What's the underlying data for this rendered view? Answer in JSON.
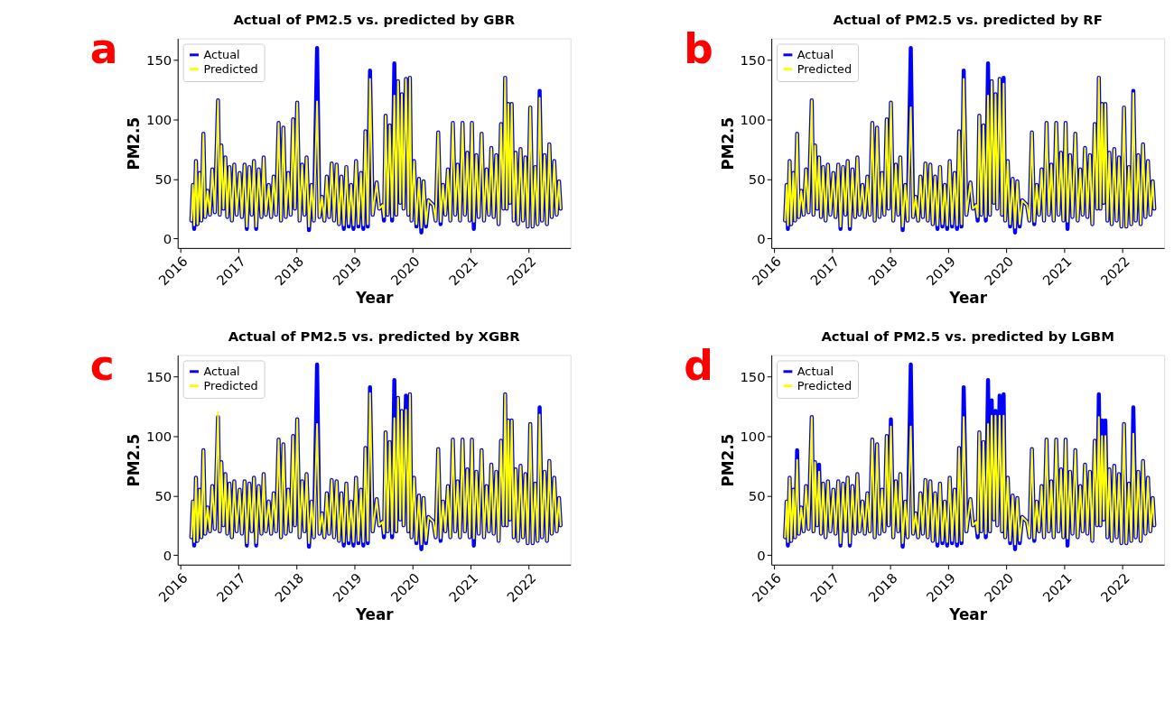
{
  "chart_data": [
    {
      "type": "line",
      "title": "Actual of PM2.5 vs. predicted by GBR",
      "xlabel": "Year",
      "ylabel": "PM2.5",
      "annotations": [
        "a"
      ],
      "legend": "top left",
      "grid": false,
      "xlim": [
        "2015-12-15",
        "2022-09-20"
      ],
      "xticks": [
        "2016",
        "2017",
        "2018",
        "2019",
        "2020",
        "2021",
        "2022"
      ],
      "ylim": [
        -8,
        168
      ],
      "yticks": [
        0,
        50,
        100,
        150
      ],
      "x": [
        "2016-03-10",
        "2016-03-20",
        "2016-03-28",
        "2016-04-08",
        "2016-04-18",
        "2016-05-01",
        "2016-05-12",
        "2016-05-25",
        "2016-06-05",
        "2016-06-20",
        "2016-07-05",
        "2016-07-20",
        "2016-08-05",
        "2016-08-25",
        "2016-09-05",
        "2016-09-15",
        "2016-09-28",
        "2016-10-10",
        "2016-10-22",
        "2016-11-05",
        "2016-11-20",
        "2016-12-05",
        "2016-12-20",
        "2017-01-08",
        "2017-01-22",
        "2017-02-08",
        "2017-02-22",
        "2017-03-10",
        "2017-03-25",
        "2017-04-08",
        "2017-04-22",
        "2017-05-08",
        "2017-05-25",
        "2017-06-08",
        "2017-06-22",
        "2017-07-10",
        "2017-07-25",
        "2017-08-10",
        "2017-08-25",
        "2017-09-10",
        "2017-09-25",
        "2017-10-10",
        "2017-10-25",
        "2017-11-10",
        "2017-11-25",
        "2017-12-10",
        "2017-12-22",
        "2018-01-05",
        "2018-01-20",
        "2018-02-05",
        "2018-02-20",
        "2018-03-05",
        "2018-03-20",
        "2018-04-05",
        "2018-04-20",
        "2018-05-10",
        "2018-05-25",
        "2018-06-10",
        "2018-06-25",
        "2018-07-10",
        "2018-07-25",
        "2018-08-10",
        "2018-08-25",
        "2018-09-10",
        "2018-09-25",
        "2018-10-10",
        "2018-10-25",
        "2018-11-10",
        "2018-11-25",
        "2018-12-10",
        "2018-12-25",
        "2019-01-10",
        "2019-01-25",
        "2019-02-10",
        "2019-02-25",
        "2019-03-10",
        "2019-03-25",
        "2019-04-08",
        "2019-04-25",
        "2019-05-20",
        "2019-06-05",
        "2019-06-25",
        "2019-07-05",
        "2019-07-15",
        "2019-07-28",
        "2019-08-10",
        "2019-08-25",
        "2019-09-08",
        "2019-09-20",
        "2019-10-01",
        "2019-10-15",
        "2019-10-25",
        "2019-11-05",
        "2019-11-20",
        "2019-12-05",
        "2019-12-15",
        "2019-12-25",
        "2020-01-10",
        "2020-01-25",
        "2020-02-10",
        "2020-02-25",
        "2020-03-10",
        "2020-03-25",
        "2020-04-10",
        "2020-05-10",
        "2020-05-25",
        "2020-06-10",
        "2020-06-25",
        "2020-07-10",
        "2020-07-25",
        "2020-08-10",
        "2020-08-25",
        "2020-09-10",
        "2020-09-25",
        "2020-10-10",
        "2020-10-25",
        "2020-11-10",
        "2020-11-25",
        "2020-12-10",
        "2020-12-25",
        "2021-01-08",
        "2021-01-20",
        "2021-02-05",
        "2021-02-20",
        "2021-03-10",
        "2021-03-25",
        "2021-04-10",
        "2021-04-25",
        "2021-05-10",
        "2021-05-25",
        "2021-06-10",
        "2021-06-25",
        "2021-07-10",
        "2021-07-25",
        "2021-08-05",
        "2021-08-15",
        "2021-08-25",
        "2021-09-05",
        "2021-09-15",
        "2021-09-28",
        "2021-10-10",
        "2021-10-25",
        "2021-11-10",
        "2021-11-25",
        "2021-12-10",
        "2021-12-25",
        "2022-01-10",
        "2022-01-25",
        "2022-02-10",
        "2022-02-25",
        "2022-03-10",
        "2022-03-25",
        "2022-04-10",
        "2022-04-25",
        "2022-05-10",
        "2022-05-25",
        "2022-06-10",
        "2022-06-25",
        "2022-07-10",
        "2022-07-20"
      ],
      "series": [
        {
          "name": "Actual",
          "color": "#0000ff",
          "values": [
            15,
            45,
            8,
            65,
            12,
            55,
            15,
            88,
            18,
            40,
            20,
            58,
            22,
            116,
            20,
            78,
            25,
            68,
            18,
            60,
            15,
            62,
            20,
            55,
            18,
            62,
            8,
            60,
            20,
            65,
            8,
            58,
            18,
            68,
            20,
            45,
            18,
            52,
            20,
            97,
            15,
            93,
            18,
            55,
            20,
            100,
            25,
            114,
            15,
            62,
            20,
            68,
            7,
            45,
            15,
            160,
            18,
            35,
            15,
            52,
            18,
            63,
            15,
            62,
            12,
            52,
            8,
            60,
            10,
            45,
            8,
            65,
            10,
            55,
            8,
            90,
            10,
            141,
            20,
            47,
            25,
            28,
            15,
            103,
            20,
            95,
            15,
            147,
            20,
            132,
            30,
            121,
            25,
            134,
            20,
            135,
            15,
            65,
            10,
            50,
            5,
            48,
            10,
            32,
            28,
            15,
            89,
            12,
            45,
            20,
            58,
            15,
            97,
            20,
            62,
            15,
            97,
            20,
            72,
            15,
            97,
            8,
            70,
            18,
            88,
            15,
            58,
            20,
            76,
            18,
            70,
            12,
            96,
            25,
            135,
            25,
            113,
            30,
            113,
            15,
            72,
            12,
            75,
            15,
            68,
            10,
            110,
            10,
            60,
            12,
            124,
            15,
            70,
            12,
            79,
            18,
            65,
            20,
            48,
            25
          ]
        },
        {
          "name": "Predicted",
          "color": "#ffff00",
          "values": [
            15,
            45,
            11,
            65,
            12,
            55,
            15,
            88,
            18,
            40,
            20,
            58,
            22,
            116,
            20,
            78,
            25,
            68,
            18,
            60,
            15,
            62,
            20,
            55,
            18,
            62,
            10,
            60,
            20,
            65,
            10,
            58,
            18,
            68,
            20,
            45,
            18,
            52,
            20,
            97,
            15,
            93,
            18,
            55,
            20,
            100,
            25,
            114,
            15,
            62,
            20,
            68,
            10,
            45,
            15,
            115,
            18,
            35,
            15,
            52,
            18,
            63,
            15,
            62,
            12,
            52,
            11,
            60,
            12,
            45,
            11,
            65,
            12,
            55,
            11,
            90,
            12,
            134,
            20,
            47,
            25,
            28,
            18,
            103,
            20,
            95,
            18,
            120,
            20,
            132,
            30,
            121,
            25,
            134,
            20,
            135,
            15,
            65,
            12,
            50,
            9,
            48,
            12,
            32,
            28,
            15,
            89,
            14,
            45,
            20,
            58,
            15,
            97,
            20,
            62,
            15,
            97,
            20,
            72,
            15,
            97,
            14,
            70,
            18,
            88,
            15,
            58,
            20,
            76,
            18,
            70,
            12,
            96,
            25,
            135,
            25,
            113,
            30,
            113,
            15,
            72,
            12,
            75,
            15,
            68,
            10,
            110,
            10,
            60,
            12,
            118,
            15,
            70,
            12,
            79,
            18,
            65,
            20,
            48,
            25
          ]
        }
      ]
    },
    {
      "type": "line",
      "title": "Actual of PM2.5 vs. predicted by RF",
      "xlabel": "Year",
      "ylabel": "PM2.5",
      "annotations": [
        "b"
      ],
      "legend": "top left",
      "grid": false,
      "xlim": [
        "2015-12-15",
        "2022-09-20"
      ],
      "xticks": [
        "2016",
        "2017",
        "2018",
        "2019",
        "2020",
        "2021",
        "2022"
      ],
      "ylim": [
        -8,
        168
      ],
      "yticks": [
        0,
        50,
        100,
        150
      ],
      "x": [
        "2016-03-10",
        "2016-03-20",
        "2016-03-28",
        "2016-04-08",
        "2016-04-18",
        "2016-05-01",
        "2016-05-12",
        "2016-05-25",
        "2016-06-05",
        "2016-06-20",
        "2016-07-05",
        "2016-07-20",
        "2016-08-05",
        "2016-08-25",
        "2016-09-05",
        "2016-09-15",
        "2016-09-28",
        "2016-10-10",
        "2016-10-22",
        "2016-11-05",
        "2016-11-20",
        "2016-12-05",
        "2016-12-20",
        "2017-01-08",
        "2017-01-22",
        "2017-02-08",
        "2017-02-22",
        "2017-03-10",
        "2017-03-25",
        "2017-04-08",
        "2017-04-22",
        "2017-05-08",
        "2017-05-25",
        "2017-06-08",
        "2017-06-22",
        "2017-07-10",
        "2017-07-25",
        "2017-08-10",
        "2017-08-25",
        "2017-09-10",
        "2017-09-25",
        "2017-10-10",
        "2017-10-25",
        "2017-11-10",
        "2017-11-25",
        "2017-12-10",
        "2017-12-22",
        "2018-01-05",
        "2018-01-20",
        "2018-02-05",
        "2018-02-20",
        "2018-03-05",
        "2018-03-20",
        "2018-04-05",
        "2018-04-20",
        "2018-05-10",
        "2018-05-25",
        "2018-06-10",
        "2018-06-25",
        "2018-07-10",
        "2018-07-25",
        "2018-08-10",
        "2018-08-25",
        "2018-09-10",
        "2018-09-25",
        "2018-10-10",
        "2018-10-25",
        "2018-11-10",
        "2018-11-25",
        "2018-12-10",
        "2018-12-25",
        "2019-01-10",
        "2019-01-25",
        "2019-02-10",
        "2019-02-25",
        "2019-03-10",
        "2019-03-25",
        "2019-04-08",
        "2019-04-25",
        "2019-05-20",
        "2019-06-05",
        "2019-06-25",
        "2019-07-05",
        "2019-07-15",
        "2019-07-28",
        "2019-08-10",
        "2019-08-25",
        "2019-09-08",
        "2019-09-20",
        "2019-10-01",
        "2019-10-15",
        "2019-10-25",
        "2019-11-05",
        "2019-11-20",
        "2019-12-05",
        "2019-12-15",
        "2019-12-25",
        "2020-01-10",
        "2020-01-25",
        "2020-02-10",
        "2020-02-25",
        "2020-03-10",
        "2020-03-25",
        "2020-04-10",
        "2020-05-10",
        "2020-05-25",
        "2020-06-10",
        "2020-06-25",
        "2020-07-10",
        "2020-07-25",
        "2020-08-10",
        "2020-08-25",
        "2020-09-10",
        "2020-09-25",
        "2020-10-10",
        "2020-10-25",
        "2020-11-10",
        "2020-11-25",
        "2020-12-10",
        "2020-12-25",
        "2021-01-08",
        "2021-01-20",
        "2021-02-05",
        "2021-02-20",
        "2021-03-10",
        "2021-03-25",
        "2021-04-10",
        "2021-04-25",
        "2021-05-10",
        "2021-05-25",
        "2021-06-10",
        "2021-06-25",
        "2021-07-10",
        "2021-07-25",
        "2021-08-05",
        "2021-08-15",
        "2021-08-25",
        "2021-09-05",
        "2021-09-15",
        "2021-09-28",
        "2021-10-10",
        "2021-10-25",
        "2021-11-10",
        "2021-11-25",
        "2021-12-10",
        "2021-12-25",
        "2022-01-10",
        "2022-01-25",
        "2022-02-10",
        "2022-02-25",
        "2022-03-10",
        "2022-03-25",
        "2022-04-10",
        "2022-04-25",
        "2022-05-10",
        "2022-05-25",
        "2022-06-10",
        "2022-06-25",
        "2022-07-10",
        "2022-07-20"
      ],
      "series": [
        {
          "name": "Actual",
          "color": "#0000ff",
          "values": [
            15,
            45,
            8,
            65,
            12,
            55,
            15,
            88,
            18,
            40,
            20,
            58,
            22,
            116,
            20,
            78,
            25,
            68,
            18,
            60,
            15,
            62,
            20,
            55,
            18,
            62,
            8,
            60,
            20,
            65,
            8,
            58,
            18,
            68,
            20,
            45,
            18,
            52,
            20,
            97,
            15,
            93,
            18,
            55,
            20,
            100,
            25,
            114,
            15,
            62,
            20,
            68,
            7,
            45,
            15,
            160,
            18,
            35,
            15,
            52,
            18,
            63,
            15,
            62,
            12,
            52,
            8,
            60,
            10,
            45,
            8,
            65,
            10,
            55,
            8,
            90,
            10,
            141,
            20,
            47,
            25,
            28,
            15,
            103,
            20,
            95,
            15,
            147,
            20,
            132,
            30,
            121,
            25,
            134,
            20,
            135,
            15,
            65,
            10,
            50,
            5,
            48,
            10,
            32,
            28,
            15,
            89,
            12,
            45,
            20,
            58,
            15,
            97,
            20,
            62,
            15,
            97,
            20,
            72,
            15,
            97,
            8,
            70,
            18,
            88,
            15,
            58,
            20,
            76,
            18,
            70,
            12,
            96,
            25,
            135,
            25,
            113,
            30,
            113,
            15,
            72,
            12,
            75,
            15,
            68,
            10,
            110,
            10,
            60,
            12,
            124,
            15,
            70,
            12,
            79,
            18,
            65,
            20,
            48,
            25
          ]
        },
        {
          "name": "Predicted",
          "color": "#ffff00",
          "values": [
            15,
            45,
            11,
            65,
            12,
            55,
            15,
            88,
            18,
            40,
            20,
            58,
            22,
            116,
            20,
            78,
            25,
            68,
            18,
            60,
            15,
            62,
            20,
            55,
            18,
            62,
            10,
            60,
            20,
            65,
            10,
            58,
            18,
            68,
            20,
            45,
            18,
            52,
            20,
            97,
            15,
            93,
            18,
            55,
            20,
            100,
            25,
            114,
            15,
            62,
            20,
            68,
            10,
            45,
            15,
            110,
            18,
            35,
            15,
            52,
            18,
            63,
            15,
            62,
            12,
            52,
            11,
            60,
            12,
            45,
            11,
            65,
            12,
            55,
            11,
            90,
            12,
            134,
            20,
            47,
            25,
            28,
            18,
            103,
            20,
            95,
            18,
            120,
            20,
            132,
            30,
            121,
            25,
            134,
            20,
            130,
            15,
            65,
            12,
            50,
            9,
            48,
            12,
            32,
            28,
            15,
            89,
            14,
            45,
            20,
            58,
            15,
            97,
            20,
            62,
            15,
            97,
            20,
            72,
            15,
            97,
            14,
            70,
            18,
            88,
            15,
            58,
            20,
            76,
            18,
            70,
            12,
            96,
            25,
            135,
            25,
            113,
            30,
            113,
            15,
            72,
            12,
            75,
            15,
            68,
            10,
            110,
            10,
            60,
            12,
            122,
            15,
            70,
            12,
            79,
            18,
            65,
            20,
            48,
            25
          ]
        }
      ]
    },
    {
      "type": "line",
      "title": "Actual of PM2.5 vs. predicted by XGBR",
      "xlabel": "Year",
      "ylabel": "PM2.5",
      "annotations": [
        "c"
      ],
      "legend": "top left",
      "grid": false,
      "xlim": [
        "2015-12-15",
        "2022-09-20"
      ],
      "xticks": [
        "2016",
        "2017",
        "2018",
        "2019",
        "2020",
        "2021",
        "2022"
      ],
      "ylim": [
        -8,
        168
      ],
      "yticks": [
        0,
        50,
        100,
        150
      ],
      "x": [
        "2016-03-10",
        "2016-03-20",
        "2016-03-28",
        "2016-04-08",
        "2016-04-18",
        "2016-05-01",
        "2016-05-12",
        "2016-05-25",
        "2016-06-05",
        "2016-06-20",
        "2016-07-05",
        "2016-07-20",
        "2016-08-05",
        "2016-08-25",
        "2016-09-05",
        "2016-09-15",
        "2016-09-28",
        "2016-10-10",
        "2016-10-22",
        "2016-11-05",
        "2016-11-20",
        "2016-12-05",
        "2016-12-20",
        "2017-01-08",
        "2017-01-22",
        "2017-02-08",
        "2017-02-22",
        "2017-03-10",
        "2017-03-25",
        "2017-04-08",
        "2017-04-22",
        "2017-05-08",
        "2017-05-25",
        "2017-06-08",
        "2017-06-22",
        "2017-07-10",
        "2017-07-25",
        "2017-08-10",
        "2017-08-25",
        "2017-09-10",
        "2017-09-25",
        "2017-10-10",
        "2017-10-25",
        "2017-11-10",
        "2017-11-25",
        "2017-12-10",
        "2017-12-22",
        "2018-01-05",
        "2018-01-20",
        "2018-02-05",
        "2018-02-20",
        "2018-03-05",
        "2018-03-20",
        "2018-04-05",
        "2018-04-20",
        "2018-05-10",
        "2018-05-25",
        "2018-06-10",
        "2018-06-25",
        "2018-07-10",
        "2018-07-25",
        "2018-08-10",
        "2018-08-25",
        "2018-09-10",
        "2018-09-25",
        "2018-10-10",
        "2018-10-25",
        "2018-11-10",
        "2018-11-25",
        "2018-12-10",
        "2018-12-25",
        "2019-01-10",
        "2019-01-25",
        "2019-02-10",
        "2019-02-25",
        "2019-03-10",
        "2019-03-25",
        "2019-04-08",
        "2019-04-25",
        "2019-05-20",
        "2019-06-05",
        "2019-06-25",
        "2019-07-05",
        "2019-07-15",
        "2019-07-28",
        "2019-08-10",
        "2019-08-25",
        "2019-09-08",
        "2019-09-20",
        "2019-10-01",
        "2019-10-15",
        "2019-10-25",
        "2019-11-05",
        "2019-11-20",
        "2019-12-05",
        "2019-12-15",
        "2019-12-25",
        "2020-01-10",
        "2020-01-25",
        "2020-02-10",
        "2020-02-25",
        "2020-03-10",
        "2020-03-25",
        "2020-04-10",
        "2020-05-10",
        "2020-05-25",
        "2020-06-10",
        "2020-06-25",
        "2020-07-10",
        "2020-07-25",
        "2020-08-10",
        "2020-08-25",
        "2020-09-10",
        "2020-09-25",
        "2020-10-10",
        "2020-10-25",
        "2020-11-10",
        "2020-11-25",
        "2020-12-10",
        "2020-12-25",
        "2021-01-08",
        "2021-01-20",
        "2021-02-05",
        "2021-02-20",
        "2021-03-10",
        "2021-03-25",
        "2021-04-10",
        "2021-04-25",
        "2021-05-10",
        "2021-05-25",
        "2021-06-10",
        "2021-06-25",
        "2021-07-10",
        "2021-07-25",
        "2021-08-05",
        "2021-08-15",
        "2021-08-25",
        "2021-09-05",
        "2021-09-15",
        "2021-09-28",
        "2021-10-10",
        "2021-10-25",
        "2021-11-10",
        "2021-11-25",
        "2021-12-10",
        "2021-12-25",
        "2022-01-10",
        "2022-01-25",
        "2022-02-10",
        "2022-02-25",
        "2022-03-10",
        "2022-03-25",
        "2022-04-10",
        "2022-04-25",
        "2022-05-10",
        "2022-05-25",
        "2022-06-10",
        "2022-06-25",
        "2022-07-10",
        "2022-07-20"
      ],
      "series": [
        {
          "name": "Actual",
          "color": "#0000ff",
          "values": [
            15,
            45,
            8,
            65,
            12,
            55,
            15,
            88,
            18,
            40,
            20,
            58,
            22,
            116,
            20,
            78,
            25,
            68,
            18,
            60,
            15,
            62,
            20,
            55,
            18,
            62,
            8,
            60,
            20,
            65,
            8,
            58,
            18,
            68,
            20,
            45,
            18,
            52,
            20,
            97,
            15,
            93,
            18,
            55,
            20,
            100,
            25,
            114,
            15,
            62,
            20,
            68,
            7,
            45,
            15,
            160,
            18,
            35,
            15,
            52,
            18,
            63,
            15,
            62,
            12,
            52,
            8,
            60,
            10,
            45,
            8,
            65,
            10,
            55,
            8,
            90,
            10,
            141,
            20,
            47,
            25,
            28,
            15,
            103,
            20,
            95,
            15,
            147,
            20,
            132,
            30,
            121,
            25,
            134,
            20,
            135,
            15,
            65,
            10,
            50,
            5,
            48,
            10,
            32,
            28,
            15,
            89,
            12,
            45,
            20,
            58,
            15,
            97,
            20,
            62,
            15,
            97,
            20,
            72,
            15,
            97,
            8,
            70,
            18,
            88,
            15,
            58,
            20,
            76,
            18,
            70,
            12,
            96,
            25,
            135,
            25,
            113,
            30,
            113,
            15,
            72,
            12,
            75,
            15,
            68,
            10,
            110,
            10,
            60,
            12,
            124,
            15,
            70,
            12,
            79,
            18,
            65,
            20,
            48,
            25
          ]
        },
        {
          "name": "Predicted",
          "color": "#ffff00",
          "values": [
            15,
            45,
            11,
            65,
            12,
            55,
            15,
            88,
            18,
            40,
            20,
            58,
            22,
            120,
            20,
            78,
            25,
            68,
            18,
            60,
            15,
            62,
            20,
            55,
            18,
            62,
            10,
            60,
            20,
            65,
            10,
            58,
            18,
            68,
            20,
            45,
            18,
            52,
            20,
            97,
            15,
            93,
            18,
            55,
            20,
            100,
            25,
            114,
            15,
            62,
            20,
            68,
            10,
            45,
            15,
            110,
            18,
            35,
            15,
            52,
            18,
            63,
            15,
            62,
            12,
            52,
            11,
            60,
            12,
            45,
            11,
            65,
            12,
            55,
            11,
            90,
            12,
            136,
            20,
            47,
            25,
            28,
            18,
            103,
            20,
            95,
            18,
            115,
            20,
            132,
            30,
            121,
            25,
            122,
            20,
            135,
            15,
            65,
            12,
            50,
            9,
            48,
            12,
            32,
            28,
            15,
            89,
            14,
            45,
            20,
            58,
            15,
            97,
            20,
            62,
            15,
            97,
            20,
            72,
            15,
            97,
            14,
            70,
            18,
            88,
            15,
            58,
            20,
            76,
            18,
            70,
            12,
            96,
            25,
            135,
            25,
            113,
            30,
            113,
            15,
            72,
            12,
            75,
            15,
            68,
            10,
            110,
            10,
            60,
            12,
            118,
            15,
            70,
            12,
            79,
            18,
            65,
            20,
            48,
            25
          ]
        }
      ]
    },
    {
      "type": "line",
      "title": "Actual of PM2.5 vs. predicted by LGBM",
      "xlabel": "Year",
      "ylabel": "PM2.5",
      "annotations": [
        "d"
      ],
      "legend": "top left",
      "grid": false,
      "xlim": [
        "2015-12-15",
        "2022-09-20"
      ],
      "xticks": [
        "2016",
        "2017",
        "2018",
        "2019",
        "2020",
        "2021",
        "2022"
      ],
      "ylim": [
        -8,
        168
      ],
      "yticks": [
        0,
        50,
        100,
        150
      ],
      "x": [
        "2016-03-10",
        "2016-03-20",
        "2016-03-28",
        "2016-04-08",
        "2016-04-18",
        "2016-05-01",
        "2016-05-12",
        "2016-05-25",
        "2016-06-05",
        "2016-06-20",
        "2016-07-05",
        "2016-07-20",
        "2016-08-05",
        "2016-08-25",
        "2016-09-05",
        "2016-09-15",
        "2016-09-28",
        "2016-10-10",
        "2016-10-22",
        "2016-11-05",
        "2016-11-20",
        "2016-12-05",
        "2016-12-20",
        "2017-01-08",
        "2017-01-22",
        "2017-02-08",
        "2017-02-22",
        "2017-03-10",
        "2017-03-25",
        "2017-04-08",
        "2017-04-22",
        "2017-05-08",
        "2017-05-25",
        "2017-06-08",
        "2017-06-22",
        "2017-07-10",
        "2017-07-25",
        "2017-08-10",
        "2017-08-25",
        "2017-09-10",
        "2017-09-25",
        "2017-10-10",
        "2017-10-25",
        "2017-11-10",
        "2017-11-25",
        "2017-12-10",
        "2017-12-22",
        "2018-01-05",
        "2018-01-20",
        "2018-02-05",
        "2018-02-20",
        "2018-03-05",
        "2018-03-20",
        "2018-04-05",
        "2018-04-20",
        "2018-05-10",
        "2018-05-25",
        "2018-06-10",
        "2018-06-25",
        "2018-07-10",
        "2018-07-25",
        "2018-08-10",
        "2018-08-25",
        "2018-09-10",
        "2018-09-25",
        "2018-10-10",
        "2018-10-25",
        "2018-11-10",
        "2018-11-25",
        "2018-12-10",
        "2018-12-25",
        "2019-01-10",
        "2019-01-25",
        "2019-02-10",
        "2019-02-25",
        "2019-03-10",
        "2019-03-25",
        "2019-04-08",
        "2019-04-25",
        "2019-05-20",
        "2019-06-05",
        "2019-06-25",
        "2019-07-05",
        "2019-07-15",
        "2019-07-28",
        "2019-08-10",
        "2019-08-25",
        "2019-09-08",
        "2019-09-20",
        "2019-10-01",
        "2019-10-15",
        "2019-10-25",
        "2019-11-05",
        "2019-11-20",
        "2019-12-05",
        "2019-12-15",
        "2019-12-25",
        "2020-01-10",
        "2020-01-25",
        "2020-02-10",
        "2020-02-25",
        "2020-03-10",
        "2020-03-25",
        "2020-04-10",
        "2020-05-10",
        "2020-05-25",
        "2020-06-10",
        "2020-06-25",
        "2020-07-10",
        "2020-07-25",
        "2020-08-10",
        "2020-08-25",
        "2020-09-10",
        "2020-09-25",
        "2020-10-10",
        "2020-10-25",
        "2020-11-10",
        "2020-11-25",
        "2020-12-10",
        "2020-12-25",
        "2021-01-08",
        "2021-01-20",
        "2021-02-05",
        "2021-02-20",
        "2021-03-10",
        "2021-03-25",
        "2021-04-10",
        "2021-04-25",
        "2021-05-10",
        "2021-05-25",
        "2021-06-10",
        "2021-06-25",
        "2021-07-10",
        "2021-07-25",
        "2021-08-05",
        "2021-08-15",
        "2021-08-25",
        "2021-09-05",
        "2021-09-15",
        "2021-09-28",
        "2021-10-10",
        "2021-10-25",
        "2021-11-10",
        "2021-11-25",
        "2021-12-10",
        "2021-12-25",
        "2022-01-10",
        "2022-01-25",
        "2022-02-10",
        "2022-02-25",
        "2022-03-10",
        "2022-03-25",
        "2022-04-10",
        "2022-04-25",
        "2022-05-10",
        "2022-05-25",
        "2022-06-10",
        "2022-06-25",
        "2022-07-10",
        "2022-07-20"
      ],
      "series": [
        {
          "name": "Actual",
          "color": "#0000ff",
          "values": [
            15,
            45,
            8,
            65,
            12,
            55,
            15,
            88,
            18,
            40,
            20,
            58,
            22,
            116,
            20,
            78,
            25,
            76,
            18,
            60,
            15,
            62,
            20,
            55,
            18,
            62,
            8,
            60,
            20,
            65,
            8,
            58,
            18,
            68,
            20,
            45,
            18,
            52,
            20,
            97,
            15,
            93,
            18,
            55,
            20,
            100,
            25,
            114,
            15,
            62,
            20,
            68,
            7,
            45,
            15,
            160,
            18,
            35,
            15,
            52,
            18,
            63,
            15,
            62,
            12,
            52,
            8,
            60,
            10,
            45,
            8,
            65,
            10,
            55,
            8,
            90,
            10,
            141,
            20,
            47,
            25,
            28,
            15,
            103,
            20,
            95,
            15,
            147,
            20,
            130,
            30,
            121,
            25,
            134,
            20,
            135,
            15,
            65,
            10,
            50,
            5,
            48,
            10,
            32,
            28,
            15,
            89,
            12,
            45,
            20,
            58,
            15,
            97,
            20,
            62,
            15,
            97,
            20,
            72,
            15,
            97,
            8,
            70,
            18,
            88,
            15,
            58,
            20,
            76,
            18,
            70,
            12,
            96,
            25,
            135,
            25,
            113,
            30,
            113,
            15,
            72,
            12,
            75,
            15,
            68,
            10,
            110,
            10,
            60,
            12,
            124,
            15,
            70,
            12,
            79,
            18,
            65,
            20,
            48,
            25
          ]
        },
        {
          "name": "Predicted",
          "color": "#ffff00",
          "values": [
            15,
            45,
            11,
            65,
            12,
            55,
            15,
            80,
            18,
            40,
            20,
            58,
            22,
            116,
            20,
            78,
            25,
            70,
            18,
            60,
            15,
            62,
            20,
            55,
            18,
            62,
            10,
            60,
            20,
            65,
            10,
            58,
            18,
            68,
            20,
            45,
            18,
            52,
            20,
            97,
            15,
            93,
            18,
            55,
            20,
            100,
            25,
            108,
            15,
            62,
            20,
            68,
            10,
            45,
            15,
            108,
            18,
            35,
            15,
            52,
            18,
            63,
            15,
            62,
            12,
            52,
            11,
            60,
            12,
            45,
            11,
            65,
            12,
            55,
            11,
            90,
            12,
            116,
            20,
            47,
            25,
            28,
            18,
            103,
            20,
            95,
            18,
            110,
            20,
            117,
            30,
            117,
            25,
            117,
            20,
            117,
            15,
            65,
            12,
            50,
            9,
            48,
            12,
            32,
            28,
            15,
            89,
            14,
            45,
            20,
            58,
            15,
            97,
            20,
            62,
            15,
            97,
            20,
            72,
            15,
            97,
            14,
            70,
            18,
            88,
            15,
            58,
            20,
            76,
            18,
            70,
            12,
            96,
            25,
            116,
            25,
            100,
            30,
            100,
            15,
            72,
            12,
            75,
            15,
            68,
            10,
            110,
            10,
            60,
            12,
            102,
            15,
            70,
            12,
            79,
            18,
            65,
            20,
            48,
            25
          ]
        }
      ]
    }
  ]
}
